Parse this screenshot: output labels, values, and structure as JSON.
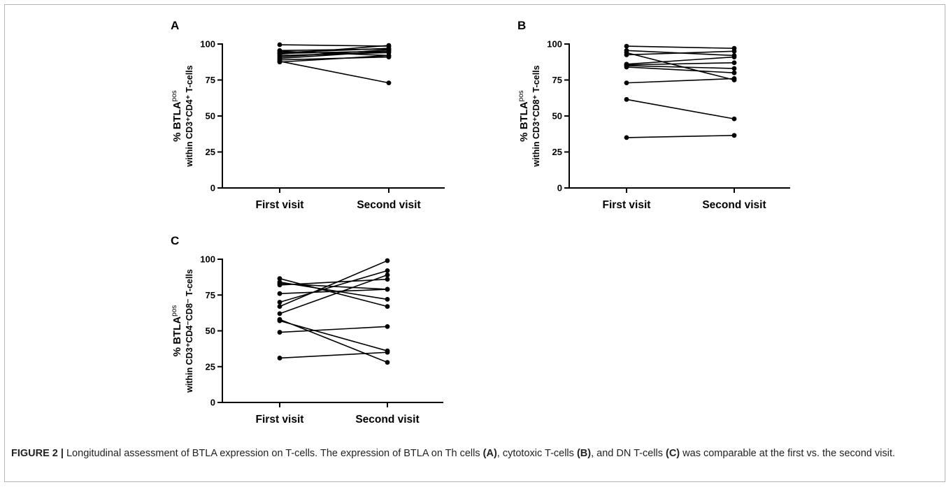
{
  "chart_data": [
    {
      "panel": "A",
      "type": "line",
      "categories": [
        "First visit",
        "Second visit"
      ],
      "ylabel_line1": "% BTLA",
      "ylabel_sup": "pos",
      "ylabel_line2": "within CD3⁺CD4⁺ T-cells",
      "ylim": [
        0,
        100
      ],
      "yticks": [
        0,
        25,
        50,
        75,
        100
      ],
      "grid": false,
      "series": [
        {
          "values": [
            99.5,
            98.5
          ]
        },
        {
          "values": [
            95.5,
            96.5
          ]
        },
        {
          "values": [
            95,
            92
          ]
        },
        {
          "values": [
            94,
            97
          ]
        },
        {
          "values": [
            93.5,
            95
          ]
        },
        {
          "values": [
            93,
            99
          ]
        },
        {
          "values": [
            92,
            94
          ]
        },
        {
          "values": [
            91,
            96
          ]
        },
        {
          "values": [
            90,
            95
          ]
        },
        {
          "values": [
            89,
            91
          ]
        },
        {
          "values": [
            88,
            73
          ]
        },
        {
          "values": [
            87.5,
            92
          ]
        }
      ]
    },
    {
      "panel": "B",
      "type": "line",
      "categories": [
        "First visit",
        "Second visit"
      ],
      "ylabel_line1": "% BTLA",
      "ylabel_sup": "pos",
      "ylabel_line2": "within CD3⁺CD8⁺ T-cells",
      "ylim": [
        0,
        100
      ],
      "yticks": [
        0,
        25,
        50,
        75,
        100
      ],
      "grid": false,
      "series": [
        {
          "values": [
            98.5,
            97
          ]
        },
        {
          "values": [
            95.5,
            92
          ]
        },
        {
          "values": [
            94,
            75
          ]
        },
        {
          "values": [
            92.5,
            95
          ]
        },
        {
          "values": [
            86,
            91
          ]
        },
        {
          "values": [
            85.5,
            87
          ]
        },
        {
          "values": [
            85,
            83
          ]
        },
        {
          "values": [
            84,
            80
          ]
        },
        {
          "values": [
            73,
            76
          ]
        },
        {
          "values": [
            61.5,
            48
          ]
        },
        {
          "values": [
            35,
            36.5
          ]
        }
      ]
    },
    {
      "panel": "C",
      "type": "line",
      "categories": [
        "First visit",
        "Second visit"
      ],
      "ylabel_line1": "% BTLA",
      "ylabel_sup": "pos",
      "ylabel_line2": "within CD3⁺CD4⁻CD8⁻ T-cells",
      "ylim": [
        0,
        100
      ],
      "yticks": [
        0,
        25,
        50,
        75,
        100
      ],
      "grid": false,
      "series": [
        {
          "values": [
            86.5,
            67
          ]
        },
        {
          "values": [
            84,
            72
          ]
        },
        {
          "values": [
            82,
            86
          ]
        },
        {
          "values": [
            83,
            79
          ]
        },
        {
          "values": [
            76,
            79
          ]
        },
        {
          "values": [
            70,
            92
          ]
        },
        {
          "values": [
            67,
            99
          ]
        },
        {
          "values": [
            62,
            89
          ]
        },
        {
          "values": [
            58,
            28
          ]
        },
        {
          "values": [
            57,
            36
          ]
        },
        {
          "values": [
            49,
            53
          ]
        },
        {
          "values": [
            31,
            35
          ]
        }
      ]
    }
  ],
  "caption": {
    "label": "FIGURE 2 |",
    "text1": " Longitudinal assessment of BTLA expression on T-cells. The expression of BTLA on Th cells ",
    "ref_a": "(A)",
    "text2": ", cytotoxic T-cells ",
    "ref_b": "(B)",
    "text3": ", and DN T-cells ",
    "ref_c": "(C)",
    "text4": " was comparable at the first vs. the second visit."
  }
}
